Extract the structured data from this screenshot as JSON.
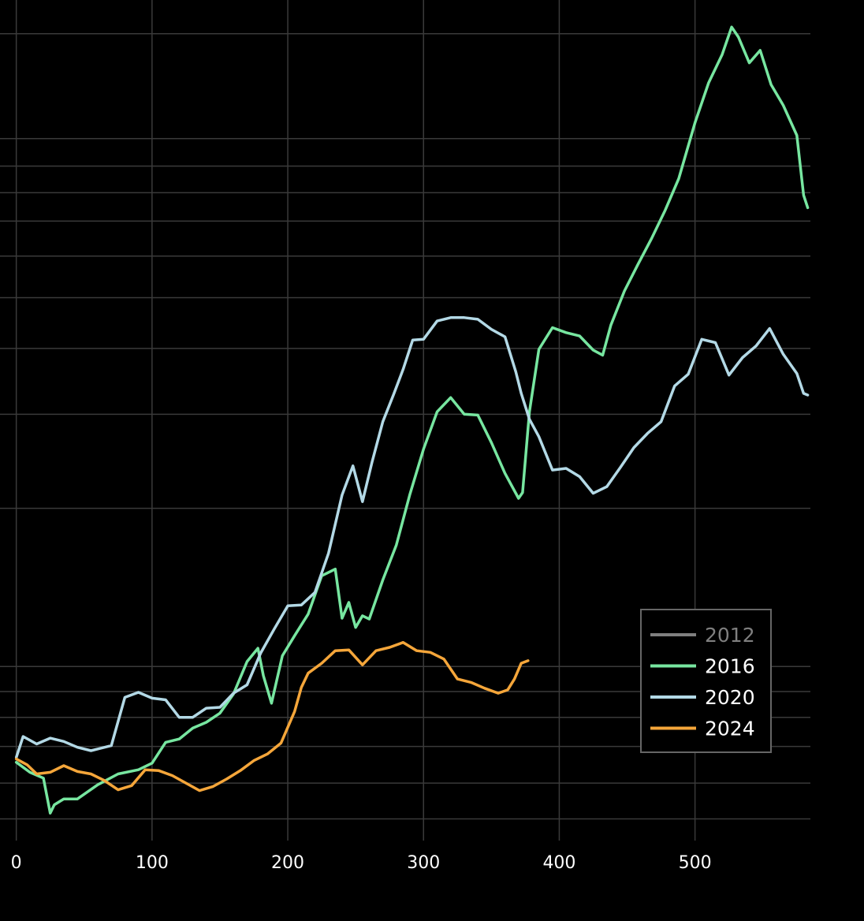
{
  "chart_data": {
    "type": "line",
    "title": "",
    "xlabel": "",
    "ylabel": "",
    "xlim": [
      -12,
      585
    ],
    "ylim": [
      0,
      100
    ],
    "x_ticks": [
      0,
      100,
      200,
      300,
      400,
      500
    ],
    "x_tick_labels": [
      "0",
      "100",
      "200",
      "300",
      "400",
      "500"
    ],
    "y_gridlines": [
      2.6,
      6.9,
      11.3,
      14.8,
      17.9,
      20.9,
      39.9,
      51.2,
      59.1,
      65.2,
      70.2,
      74.4,
      77.8,
      81.0,
      84.3,
      96.9
    ],
    "grid": true,
    "legend_position": "bottom-right",
    "series": [
      {
        "name": "2012",
        "color": "#7f7f7f",
        "visible": false,
        "x": [],
        "y": []
      },
      {
        "name": "2016",
        "color": "#77e6a0",
        "visible": true,
        "x": [
          0,
          10,
          20,
          25,
          28,
          35,
          45,
          60,
          75,
          90,
          100,
          110,
          120,
          130,
          140,
          150,
          160,
          170,
          178,
          182,
          188,
          196,
          205,
          215,
          225,
          235,
          240,
          245,
          250,
          255,
          260,
          270,
          280,
          290,
          300,
          310,
          320,
          330,
          340,
          350,
          360,
          370,
          373,
          378,
          385,
          395,
          405,
          415,
          425,
          432,
          438,
          448,
          458,
          468,
          478,
          488,
          500,
          510,
          520,
          527,
          532,
          540,
          548,
          556,
          565,
          575,
          580,
          583
        ],
        "y": [
          9.4,
          8.2,
          7.5,
          3.3,
          4.3,
          5.0,
          5.0,
          6.7,
          8.0,
          8.5,
          9.3,
          11.8,
          12.2,
          13.5,
          14.2,
          15.3,
          17.6,
          21.5,
          23.1,
          19.8,
          16.5,
          22.2,
          24.6,
          27.2,
          31.8,
          32.6,
          26.7,
          28.6,
          25.6,
          27.0,
          26.6,
          31.3,
          35.5,
          41.6,
          47.0,
          51.5,
          53.2,
          51.2,
          51.1,
          47.8,
          44.1,
          41.1,
          41.8,
          51.5,
          59.0,
          61.6,
          61.0,
          60.6,
          58.9,
          58.3,
          61.9,
          66.0,
          69.2,
          72.3,
          75.7,
          79.5,
          86.2,
          91.0,
          94.4,
          97.7,
          96.5,
          93.4,
          94.9,
          90.8,
          88.3,
          84.7,
          77.5,
          76.0
        ]
      },
      {
        "name": "2020",
        "color": "#b3d9e6",
        "visible": true,
        "x": [
          0,
          5,
          15,
          25,
          35,
          45,
          55,
          70,
          80,
          90,
          100,
          110,
          120,
          130,
          140,
          150,
          160,
          170,
          180,
          190,
          200,
          210,
          220,
          230,
          240,
          248,
          255,
          262,
          270,
          278,
          285,
          292,
          300,
          310,
          320,
          330,
          340,
          350,
          360,
          368,
          372,
          378,
          385,
          395,
          405,
          415,
          425,
          435,
          445,
          455,
          465,
          475,
          485,
          495,
          505,
          515,
          525,
          535,
          545,
          555,
          565,
          575,
          580,
          583
        ],
        "y": [
          10.0,
          12.5,
          11.6,
          12.3,
          11.9,
          11.2,
          10.8,
          11.4,
          17.2,
          17.8,
          17.1,
          16.9,
          14.8,
          14.8,
          15.9,
          16.0,
          17.7,
          18.7,
          22.5,
          25.4,
          28.2,
          28.3,
          29.8,
          34.5,
          41.5,
          45.0,
          40.7,
          45.4,
          50.3,
          53.6,
          56.6,
          60.1,
          60.2,
          62.4,
          62.8,
          62.8,
          62.6,
          61.4,
          60.5,
          56.3,
          53.7,
          50.6,
          48.5,
          44.5,
          44.7,
          43.7,
          41.7,
          42.5,
          44.8,
          47.2,
          48.9,
          50.3,
          54.6,
          56.0,
          60.2,
          59.8,
          55.9,
          58.0,
          59.4,
          61.5,
          58.4,
          56.1,
          53.7,
          53.5
        ]
      },
      {
        "name": "2024",
        "color": "#f5a63a",
        "visible": true,
        "x": [
          0,
          8,
          15,
          25,
          35,
          45,
          55,
          65,
          75,
          85,
          95,
          105,
          115,
          125,
          135,
          145,
          155,
          165,
          175,
          185,
          195,
          205,
          210,
          215,
          225,
          235,
          245,
          255,
          265,
          275,
          285,
          295,
          305,
          315,
          325,
          335,
          345,
          355,
          362,
          367,
          372,
          377
        ],
        "y": [
          9.8,
          9.1,
          8.0,
          8.2,
          9.0,
          8.3,
          8.0,
          7.2,
          6.1,
          6.6,
          8.5,
          8.4,
          7.8,
          6.9,
          6.0,
          6.5,
          7.4,
          8.4,
          9.6,
          10.4,
          11.7,
          15.5,
          18.4,
          20.1,
          21.3,
          22.8,
          22.9,
          21.1,
          22.8,
          23.2,
          23.8,
          22.8,
          22.6,
          21.8,
          19.4,
          19.0,
          18.3,
          17.7,
          18.1,
          19.4,
          21.3,
          21.6
        ]
      }
    ]
  }
}
